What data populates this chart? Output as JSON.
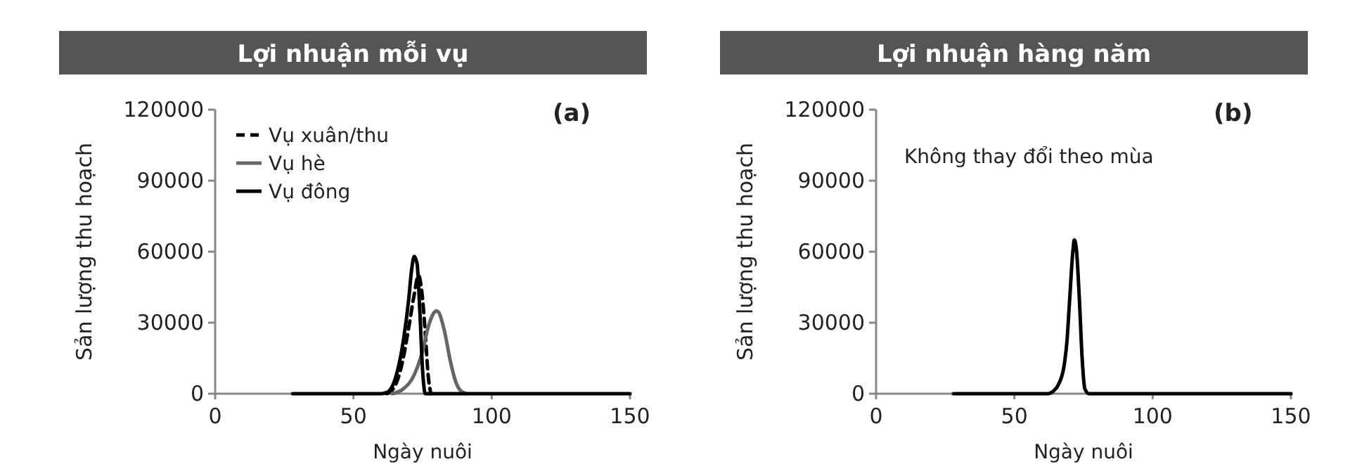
{
  "chart_data": [
    {
      "type": "line",
      "title": "Lợi nhuận mỗi vụ",
      "xlabel": "Ngày nuôi",
      "ylabel": "Sản lượng thu hoạch",
      "xlim": [
        0,
        150
      ],
      "ylim": [
        0,
        120000
      ],
      "xticks": [
        0,
        50,
        100,
        150
      ],
      "yticks": [
        0,
        30000,
        60000,
        90000,
        120000
      ],
      "grid": false,
      "legend": "top left",
      "marker": "none",
      "annotations": [
        "(a)"
      ],
      "series": [
        {
          "name": "Vụ xuân/thu",
          "color": "#000000",
          "line_style": "dashed",
          "x": [
            62,
            64,
            66,
            68,
            70,
            72,
            73.5,
            75,
            76,
            77,
            78
          ],
          "values": [
            0,
            1500,
            6000,
            15000,
            28000,
            42000,
            50000,
            40000,
            25000,
            8000,
            0
          ]
        },
        {
          "name": "Vụ hè",
          "color": "#666666",
          "line_style": "solid",
          "x": [
            64,
            68,
            72,
            75,
            77,
            79,
            80,
            81,
            83,
            85,
            87,
            89,
            91
          ],
          "values": [
            0,
            2000,
            8000,
            18000,
            28000,
            34000,
            35000,
            34000,
            26000,
            14000,
            5000,
            1000,
            0
          ]
        },
        {
          "name": "Vụ đông",
          "color": "#000000",
          "line_style": "solid",
          "x": [
            28,
            60,
            62,
            64,
            66,
            68,
            70,
            71,
            72,
            73,
            74,
            75,
            76,
            150
          ],
          "values": [
            0,
            0,
            500,
            3000,
            10000,
            22000,
            40000,
            52000,
            58000,
            55000,
            35000,
            10000,
            0,
            0
          ]
        }
      ]
    },
    {
      "type": "line",
      "title": "Lợi nhuận hàng năm",
      "xlabel": "Ngày nuôi",
      "ylabel": "Sản lượng thu hoạch",
      "xlim": [
        0,
        150
      ],
      "ylim": [
        0,
        120000
      ],
      "xticks": [
        0,
        50,
        100,
        150
      ],
      "yticks": [
        0,
        30000,
        60000,
        90000,
        120000
      ],
      "grid": false,
      "legend": false,
      "marker": "none",
      "annotations": [
        "(b)",
        "Không thay đổi theo mùa"
      ],
      "series": [
        {
          "color": "#000000",
          "line_style": "solid",
          "x": [
            28,
            62,
            64,
            66,
            68,
            69,
            70,
            71,
            71.7,
            72.5,
            73.5,
            74.5,
            75.5,
            77,
            150
          ],
          "values": [
            0,
            0,
            1000,
            4000,
            12000,
            22000,
            40000,
            58000,
            65000,
            60000,
            40000,
            15000,
            2000,
            0,
            0
          ]
        }
      ]
    }
  ]
}
